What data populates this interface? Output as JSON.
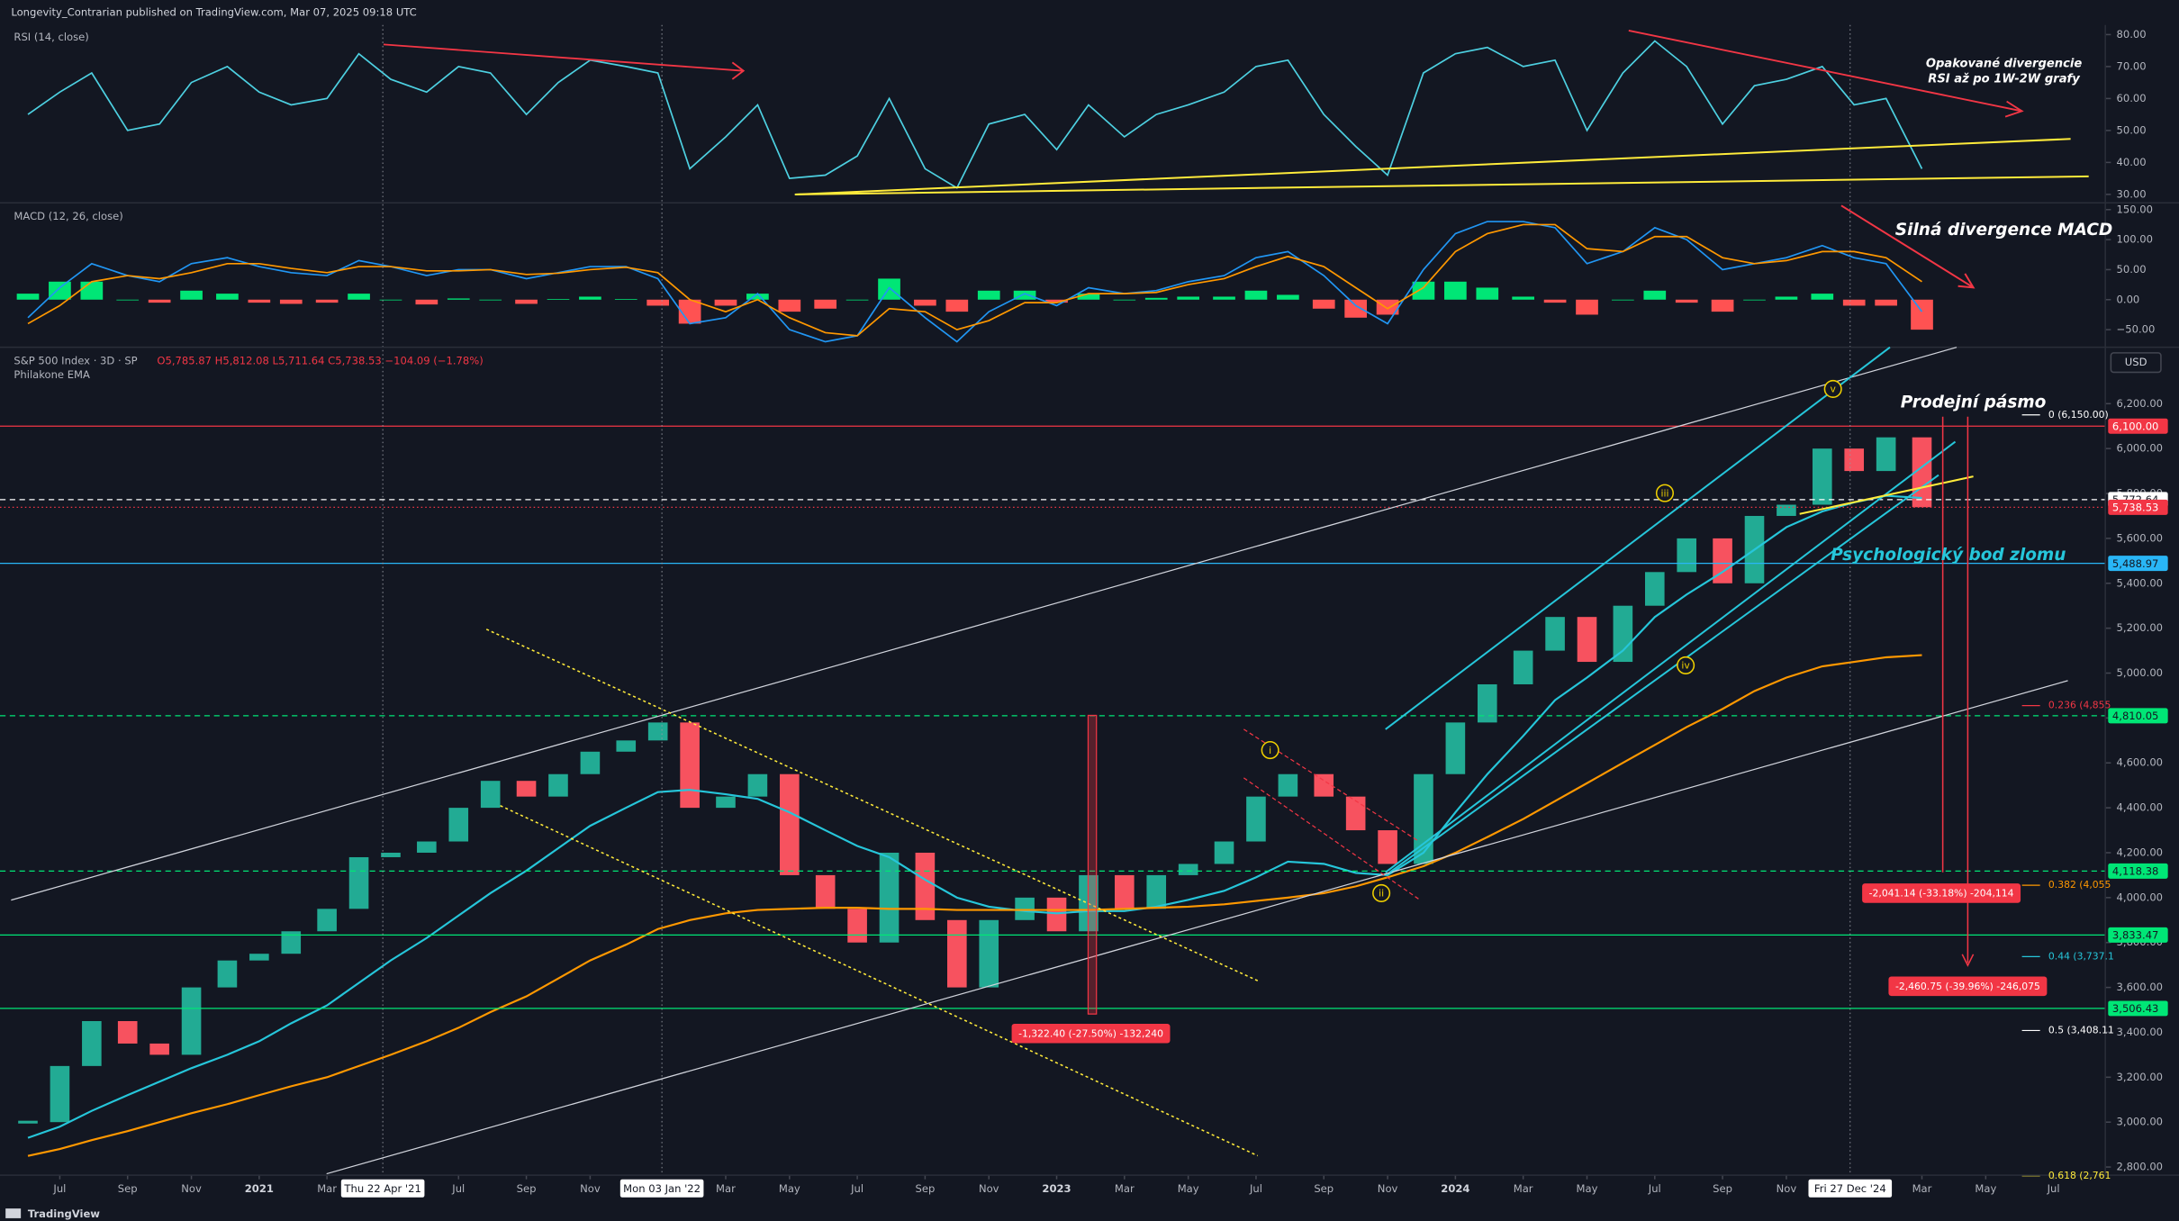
{
  "header": "Longevity_Contrarian published on TradingView.com, Mar 07, 2025 09:18 UTC",
  "footer": "TradingView",
  "chart_data": [
    {
      "type": "line",
      "title": "RSI (14, close)",
      "color": "#4dd0e1",
      "x": [
        2020.42,
        2020.5,
        2020.58,
        2020.67,
        2020.75,
        2020.83,
        2020.92,
        2021,
        2021.08,
        2021.17,
        2021.25,
        2021.33,
        2021.42,
        2021.5,
        2021.58,
        2021.67,
        2021.75,
        2021.83,
        2021.92,
        2022,
        2022.08,
        2022.17,
        2022.25,
        2022.33,
        2022.42,
        2022.5,
        2022.58,
        2022.67,
        2022.75,
        2022.83,
        2022.92,
        2023,
        2023.08,
        2023.17,
        2023.25,
        2023.33,
        2023.42,
        2023.5,
        2023.58,
        2023.67,
        2023.75,
        2023.83,
        2023.92,
        2024,
        2024.08,
        2024.17,
        2024.25,
        2024.33,
        2024.42,
        2024.5,
        2024.58,
        2024.67,
        2024.75,
        2024.83,
        2024.92,
        2025,
        2025.08,
        2025.17
      ],
      "values": [
        55,
        62,
        68,
        50,
        52,
        65,
        70,
        62,
        58,
        60,
        74,
        66,
        62,
        70,
        68,
        55,
        65,
        72,
        70,
        68,
        38,
        48,
        58,
        35,
        36,
        42,
        60,
        38,
        32,
        52,
        55,
        44,
        58,
        48,
        55,
        58,
        62,
        70,
        72,
        55,
        45,
        36,
        68,
        74,
        76,
        70,
        72,
        50,
        68,
        78,
        70,
        52,
        64,
        66,
        70,
        58,
        60,
        38
      ],
      "xlim": [
        2020.35,
        2025.63
      ],
      "ylim": [
        27.8,
        83
      ],
      "yticks": [
        {
          "value": 30,
          "label": "30.00"
        },
        {
          "value": 40,
          "label": "40.00"
        },
        {
          "value": 50,
          "label": "50.00"
        },
        {
          "value": 60,
          "label": "60.00"
        },
        {
          "value": 70,
          "label": "70.00"
        },
        {
          "value": 80,
          "label": "80.00"
        }
      ]
    },
    {
      "type": "macd",
      "title": "MACD (12, 26, close)",
      "x": [
        2020.42,
        2020.5,
        2020.58,
        2020.67,
        2020.75,
        2020.83,
        2020.92,
        2021,
        2021.08,
        2021.17,
        2021.25,
        2021.33,
        2021.42,
        2021.5,
        2021.58,
        2021.67,
        2021.75,
        2021.83,
        2021.92,
        2022,
        2022.08,
        2022.17,
        2022.25,
        2022.33,
        2022.42,
        2022.5,
        2022.58,
        2022.67,
        2022.75,
        2022.83,
        2022.92,
        2023,
        2023.08,
        2023.17,
        2023.25,
        2023.33,
        2023.42,
        2023.5,
        2023.58,
        2023.67,
        2023.75,
        2023.83,
        2023.92,
        2024,
        2024.08,
        2024.17,
        2024.25,
        2024.33,
        2024.42,
        2024.5,
        2024.58,
        2024.67,
        2024.75,
        2024.83,
        2024.92,
        2025,
        2025.08,
        2025.17
      ],
      "histogram": {
        "up_color": "#00e676",
        "down_color": "#ff5252",
        "values": [
          10,
          30,
          30,
          0,
          -5,
          15,
          10,
          -5,
          -7,
          -5,
          10,
          0,
          -8,
          2,
          0,
          -7,
          1,
          5,
          1,
          -10,
          -40,
          -10,
          10,
          -20,
          -15,
          0,
          35,
          -10,
          -20,
          15,
          15,
          -5,
          10,
          0,
          3,
          5,
          5,
          15,
          8,
          -15,
          -30,
          -25,
          30,
          30,
          20,
          5,
          -5,
          -25,
          0,
          15,
          -5,
          -20,
          0,
          5,
          10,
          -10,
          -10,
          -50
        ]
      },
      "series": [
        {
          "color": "#2196f3",
          "values": [
            -30,
            20,
            60,
            40,
            30,
            60,
            70,
            55,
            45,
            40,
            65,
            55,
            40,
            50,
            50,
            35,
            45,
            55,
            55,
            35,
            -40,
            -30,
            10,
            -50,
            -70,
            -60,
            20,
            -30,
            -70,
            -20,
            10,
            -10,
            20,
            10,
            15,
            30,
            40,
            70,
            80,
            40,
            -10,
            -40,
            50,
            110,
            130,
            130,
            120,
            60,
            80,
            120,
            100,
            50,
            60,
            70,
            90,
            70,
            60,
            -20
          ]
        },
        {
          "color": "#ff9800",
          "values": [
            -40,
            -10,
            30,
            40,
            35,
            45,
            60,
            60,
            52,
            45,
            55,
            55,
            48,
            48,
            50,
            42,
            44,
            50,
            54,
            45,
            0,
            -20,
            0,
            -30,
            -55,
            -60,
            -15,
            -20,
            -50,
            -35,
            -5,
            -5,
            10,
            10,
            12,
            25,
            35,
            55,
            72,
            55,
            20,
            -15,
            20,
            80,
            110,
            125,
            125,
            85,
            80,
            105,
            105,
            70,
            60,
            65,
            80,
            80,
            70,
            30
          ]
        }
      ],
      "xlim": [
        2020.35,
        2025.63
      ],
      "ylim": [
        -77,
        159
      ],
      "yticks": [
        {
          "value": -50,
          "label": "−50.00"
        },
        {
          "value": 0,
          "label": "0.00"
        },
        {
          "value": 50,
          "label": "50.00"
        },
        {
          "value": 100,
          "label": "100.00"
        },
        {
          "value": 150,
          "label": "150.00"
        }
      ]
    },
    {
      "type": "candlestick",
      "title": "S&P 500 Index · 3D · SP",
      "ohlc": "O5,785.87 H5,812.08 L5,711.64 C5,738.53 −104.09 (−1.78%)",
      "indicator": "Philakone EMA",
      "currency": "USD",
      "up_color": "#22ab94",
      "down_color": "#f7525f",
      "x": [
        2020.42,
        2020.5,
        2020.58,
        2020.67,
        2020.75,
        2020.83,
        2020.92,
        2021,
        2021.08,
        2021.17,
        2021.25,
        2021.33,
        2021.42,
        2021.5,
        2021.58,
        2021.67,
        2021.75,
        2021.83,
        2021.92,
        2022,
        2022.08,
        2022.17,
        2022.25,
        2022.33,
        2022.42,
        2022.5,
        2022.58,
        2022.67,
        2022.75,
        2022.83,
        2022.92,
        2023,
        2023.08,
        2023.17,
        2023.25,
        2023.33,
        2023.42,
        2023.5,
        2023.58,
        2023.67,
        2023.75,
        2023.83,
        2023.92,
        2024,
        2024.08,
        2024.17,
        2024.25,
        2024.33,
        2024.42,
        2024.5,
        2024.58,
        2024.67,
        2024.75,
        2024.83,
        2024.92,
        2025,
        2025.08,
        2025.17
      ],
      "close": [
        3000,
        3250,
        3450,
        3350,
        3300,
        3600,
        3720,
        3750,
        3850,
        3950,
        4180,
        4200,
        4250,
        4400,
        4520,
        4450,
        4550,
        4650,
        4700,
        4780,
        4400,
        4450,
        4550,
        4100,
        3950,
        3800,
        4200,
        3900,
        3600,
        3900,
        4000,
        3850,
        4100,
        3950,
        4100,
        4150,
        4250,
        4450,
        4550,
        4450,
        4300,
        4150,
        4550,
        4780,
        4950,
        5100,
        5250,
        5050,
        5300,
        5450,
        5600,
        5400,
        5700,
        5750,
        6000,
        5900,
        6050,
        5739
      ],
      "ema": [
        {
          "color": "#26c6da",
          "values": [
            2930,
            2980,
            3050,
            3120,
            3180,
            3240,
            3300,
            3360,
            3440,
            3520,
            3620,
            3720,
            3820,
            3920,
            4020,
            4120,
            4220,
            4320,
            4400,
            4470,
            4480,
            4460,
            4440,
            4380,
            4300,
            4230,
            4180,
            4080,
            4000,
            3960,
            3940,
            3930,
            3940,
            3940,
            3960,
            3990,
            4030,
            4090,
            4160,
            4150,
            4110,
            4100,
            4200,
            4380,
            4550,
            4720,
            4880,
            4980,
            5100,
            5250,
            5350,
            5450,
            5550,
            5650,
            5720,
            5760,
            5790,
            5780
          ]
        },
        {
          "color": "#ff9800",
          "values": [
            2850,
            2880,
            2920,
            2960,
            3000,
            3040,
            3080,
            3120,
            3160,
            3200,
            3250,
            3300,
            3360,
            3420,
            3490,
            3560,
            3640,
            3720,
            3790,
            3860,
            3900,
            3930,
            3945,
            3950,
            3955,
            3955,
            3950,
            3950,
            3945,
            3945,
            3945,
            3945,
            3945,
            3950,
            3955,
            3960,
            3970,
            3985,
            4000,
            4020,
            4050,
            4090,
            4140,
            4200,
            4270,
            4350,
            4430,
            4510,
            4600,
            4680,
            4760,
            4840,
            4920,
            4980,
            5030,
            5050,
            5070,
            5080
          ]
        }
      ],
      "xlim": [
        2020.35,
        2025.63
      ],
      "ylim": [
        2770,
        6445
      ],
      "xticks": [
        {
          "value": 2020.5,
          "label": "Jul"
        },
        {
          "value": 2020.67,
          "label": "Sep"
        },
        {
          "value": 2020.83,
          "label": "Nov"
        },
        2021,
        {
          "value": 2021.17,
          "label": "Mar"
        },
        {
          "value": 2021.5,
          "label": "Jul"
        },
        {
          "value": 2021.67,
          "label": "Sep"
        },
        {
          "value": 2021.83,
          "label": "Nov"
        },
        {
          "value": 2022.17,
          "label": "Mar"
        },
        {
          "value": 2022.33,
          "label": "May"
        },
        {
          "value": 2022.5,
          "label": "Jul"
        },
        {
          "value": 2022.67,
          "label": "Sep"
        },
        {
          "value": 2022.83,
          "label": "Nov"
        },
        2023,
        {
          "value": 2023.17,
          "label": "Mar"
        },
        {
          "value": 2023.33,
          "label": "May"
        },
        {
          "value": 2023.5,
          "label": "Jul"
        },
        {
          "value": 2023.67,
          "label": "Sep"
        },
        {
          "value": 2023.83,
          "label": "Nov"
        },
        2024,
        {
          "value": 2024.17,
          "label": "Mar"
        },
        {
          "value": 2024.33,
          "label": "May"
        },
        {
          "value": 2024.5,
          "label": "Jul"
        },
        {
          "value": 2024.67,
          "label": "Sep"
        },
        {
          "value": 2024.83,
          "label": "Nov"
        },
        {
          "value": 2025.17,
          "label": "Mar"
        },
        {
          "value": 2025.33,
          "label": "May"
        },
        {
          "value": 2025.5,
          "label": "Jul"
        }
      ],
      "markers": [
        {
          "value": 2021.31,
          "label": "Thu 22 Apr '21"
        },
        {
          "value": 2022.01,
          "label": "Mon 03 Jan '22"
        },
        {
          "value": 2024.99,
          "label": "Fri 27 Dec '24"
        }
      ],
      "yticks": [
        {
          "value": 2800,
          "label": "2,800.00"
        },
        {
          "value": 3000,
          "label": "3,000.00"
        },
        {
          "value": 3200,
          "label": "3,200.00"
        },
        {
          "value": 3400,
          "label": "3,400.00"
        },
        {
          "value": 3600,
          "label": "3,600.00"
        },
        {
          "value": 3800,
          "label": "3,800.00"
        },
        {
          "value": 4000,
          "label": "4,000.00"
        },
        {
          "value": 4200,
          "label": "4,200.00"
        },
        {
          "value": 4400,
          "label": "4,400.00"
        },
        {
          "value": 4600,
          "label": "4,600.00"
        },
        {
          "value": 4800,
          "label": "4,800.00"
        },
        {
          "value": 5000,
          "label": "5,000.00"
        },
        {
          "value": 5200,
          "label": "5,200.00"
        },
        {
          "value": 5400,
          "label": "5,400.00"
        },
        {
          "value": 5600,
          "label": "5,600.00"
        },
        {
          "value": 5800,
          "label": "5,800.00"
        },
        {
          "value": 6000,
          "label": "6,000.00"
        },
        {
          "value": 6200,
          "label": "6,200.00"
        }
      ],
      "levels": [
        {
          "value": 6100,
          "label": "6,100.00",
          "color": "#f23645",
          "text_color": "#ffffff",
          "style": "solid"
        },
        {
          "value": 5772.64,
          "label": "5,772.64",
          "color": "#ffffff",
          "text_color": "#131722",
          "style": "dashed"
        },
        {
          "value": 5738.53,
          "label": "5,738.53",
          "color": "#f23645",
          "text_color": "#ffffff",
          "style": "dotted"
        },
        {
          "value": 5488.97,
          "label": "5,488.97",
          "color": "#29b6f6",
          "text_color": "#131722",
          "style": "solid"
        },
        {
          "value": 4810.05,
          "label": "4,810.05",
          "color": "#00e676",
          "text_color": "#131722",
          "style": "dashed"
        },
        {
          "value": 4118.38,
          "label": "4,118.38",
          "color": "#00e676",
          "text_color": "#131722",
          "style": "dashed"
        },
        {
          "value": 3833.47,
          "label": "3,833.47",
          "color": "#00e676",
          "text_color": "#131722",
          "style": "solid"
        },
        {
          "value": 3506.43,
          "label": "3,506.43",
          "color": "#00e676",
          "text_color": "#131722",
          "style": "solid"
        }
      ],
      "fib": [
        {
          "value": 6150,
          "label": "0 (6,150.00)",
          "color": "#ffffff"
        },
        {
          "value": 4855,
          "label": "0.236 (4,855",
          "color": "#f23645"
        },
        {
          "value": 4055,
          "label": "0.382 (4,055",
          "color": "#ff9800"
        },
        {
          "value": 3737.1,
          "label": "0.44 (3,737.1",
          "color": "#26c6da"
        },
        {
          "value": 3408.11,
          "label": "0.5 (3,408.11",
          "color": "#ffffff"
        },
        {
          "value": 2761,
          "label": "0.618 (2,761",
          "color": "#ffeb3b"
        }
      ],
      "annotations": [
        {
          "text": "Opakované divergencie",
          "color": "#ffffff"
        },
        {
          "text": "RSI až po 1W-2W grafy",
          "color": "#ffffff"
        },
        {
          "text": "Silná divergence MACD",
          "color": "#ffffff"
        },
        {
          "text": "Prodejní pásmo",
          "color": "#ffffff"
        },
        {
          "text": "Psychologický bod zlomu",
          "color": "#26c6da"
        }
      ],
      "waves": [
        "i",
        "ii",
        "iii",
        "iv",
        "v"
      ],
      "measures": [
        {
          "text": "-1,322.40 (-27.50%) -132,240",
          "color": "#f23645"
        },
        {
          "text": "-2,041.14 (-33.18%) -204,114",
          "color": "#f23645"
        },
        {
          "text": "-2,460.75 (-39.96%) -246,075",
          "color": "#f23645"
        }
      ]
    }
  ]
}
